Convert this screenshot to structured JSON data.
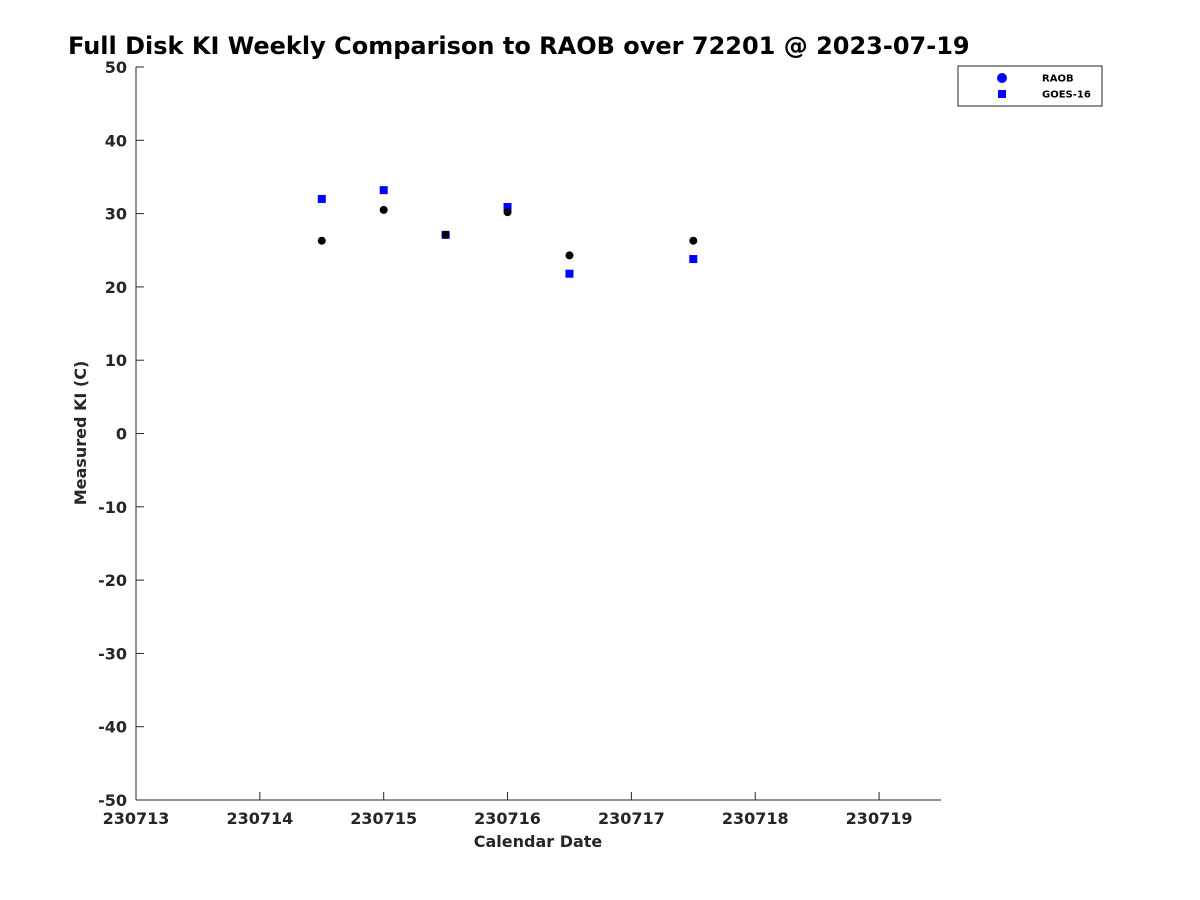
{
  "chart_data": {
    "type": "scatter",
    "title": "Full Disk KI Weekly Comparison to RAOB over 72201 @ 2023-07-19",
    "xlabel": "Calendar Date",
    "ylabel": "Measured KI (C)",
    "x_ticks": [
      "230713",
      "230714",
      "230715",
      "230716",
      "230717",
      "230718",
      "230719"
    ],
    "y_ticks": [
      "50",
      "40",
      "30",
      "20",
      "10",
      "0",
      "-10",
      "-20",
      "-30",
      "-40",
      "-50"
    ],
    "xlim": [
      230713,
      230719.5
    ],
    "ylim": [
      -50,
      50
    ],
    "grid": false,
    "legend_position": "top-right",
    "series": [
      {
        "name": "RAOB",
        "marker": "circle",
        "legend_color": "#0000ff",
        "point_color": "#000000",
        "x": [
          230714.5,
          230715,
          230715.5,
          230716,
          230716.5,
          230717.5
        ],
        "y": [
          26.3,
          30.5,
          27.1,
          30.2,
          24.3,
          26.3
        ]
      },
      {
        "name": "GOES-16",
        "marker": "square",
        "legend_color": "#0000ff",
        "point_color": "#0000ff",
        "x": [
          230714.5,
          230715,
          230715.5,
          230716,
          230716.5,
          230717.5
        ],
        "y": [
          32.0,
          33.2,
          27.1,
          30.9,
          21.8,
          23.8
        ]
      }
    ]
  }
}
